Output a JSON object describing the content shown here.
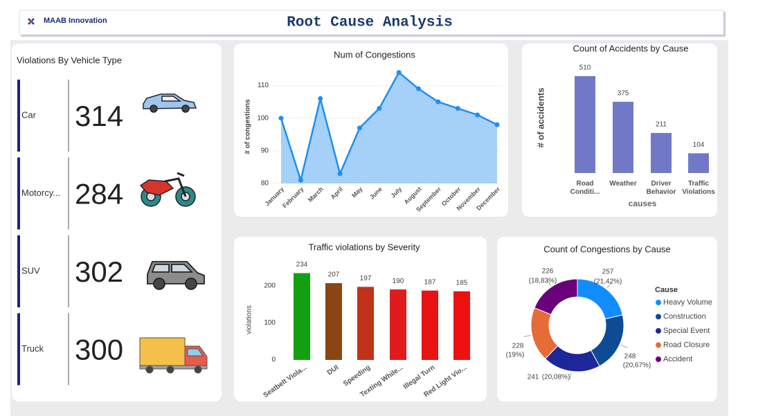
{
  "header": {
    "logo": "MAAB Innovation",
    "title": "Root Cause Analysis"
  },
  "vehicle_card": {
    "title": "Violations By Vehicle Type",
    "items": [
      {
        "label": "Car",
        "value": 314
      },
      {
        "label": "Motorcy...",
        "value": 284
      },
      {
        "label": "SUV",
        "value": 302
      },
      {
        "label": "Truck",
        "value": 300
      }
    ]
  },
  "chart_data": [
    {
      "type": "area",
      "title": "Num of Congestions",
      "y_label": "# of congestions",
      "categories": [
        "January",
        "February",
        "March",
        "April",
        "May",
        "June",
        "July",
        "August",
        "September",
        "October",
        "November",
        "December"
      ],
      "values": [
        100,
        81,
        106,
        83,
        97,
        103,
        114,
        109,
        105,
        103,
        101,
        98
      ],
      "color": "#1f8ef0",
      "fill": "#a5d0f8",
      "ylim": [
        80,
        115
      ],
      "yticks": [
        80,
        90,
        100,
        110
      ],
      "grid": true
    },
    {
      "type": "bar",
      "title": "Count of Accidents by Cause",
      "x_label": "causes",
      "y_label": "# of accidents",
      "categories": [
        "Road Conditi...",
        "Weather",
        "Driver Behavior",
        "Traffic Violations"
      ],
      "values": [
        510,
        375,
        211,
        104
      ],
      "color": "#7179c7"
    },
    {
      "type": "bar",
      "title": "Traffic violations by Severity",
      "y_label": "violations",
      "categories": [
        "Seatbelt Viola...",
        "DUI",
        "Speeding",
        "Texting While...",
        "Illegal Turn",
        "Red Light Vio..."
      ],
      "values": [
        234,
        207,
        197,
        190,
        187,
        185
      ],
      "colors": [
        "#12a012",
        "#8b4513",
        "#c0321a",
        "#e01b1b",
        "#e81414",
        "#ee1010"
      ],
      "ylim": [
        0,
        250
      ],
      "yticks": [
        0,
        100,
        200
      ]
    },
    {
      "type": "donut",
      "title": "Count of Congestions by Cause",
      "legend_title": "Cause",
      "categories": [
        "Heavy Volume",
        "Construction",
        "Special Event",
        "Road Closure",
        "Accident"
      ],
      "values": [
        257,
        248,
        241,
        228,
        226
      ],
      "percent_labels": [
        "(21,42%)",
        "(20,67%)",
        "(20,08%)",
        "(19%)",
        "(18,83%)"
      ],
      "colors": [
        "#118dff",
        "#0d4c94",
        "#1c2899",
        "#e66c37",
        "#6b007b"
      ]
    }
  ]
}
